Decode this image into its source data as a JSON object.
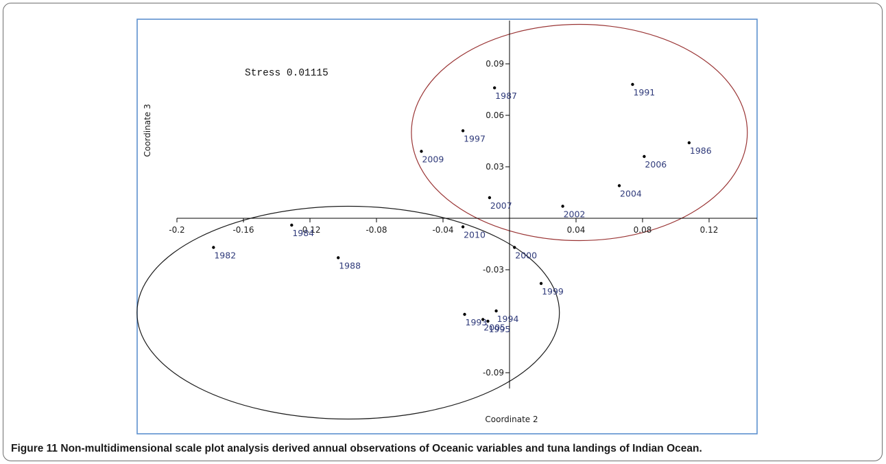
{
  "chart_data": {
    "type": "scatter",
    "title": "",
    "xlabel": "Coordinate 2",
    "ylabel": "Coordinate 3",
    "annotation": "Stress 0.01115",
    "xlim": [
      -0.2,
      0.15
    ],
    "ylim": [
      -0.1,
      0.11
    ],
    "x_ticks": [
      -0.2,
      -0.16,
      -0.12,
      -0.08,
      -0.04,
      0.04,
      0.08,
      0.12
    ],
    "x_tick_labels": [
      "-0.2",
      "-0.16",
      "-0.12",
      "-0.08",
      "-0.04",
      "0.04",
      "0.08",
      "0.12"
    ],
    "y_ticks": [
      0.09,
      0.06,
      0.03,
      -0.03,
      -0.09
    ],
    "y_tick_labels": [
      "0.09",
      "0.06",
      "0.03",
      "-0.03",
      "-0.09"
    ],
    "grid": false,
    "points": [
      {
        "label": "1987",
        "x": -0.009,
        "y": 0.076
      },
      {
        "label": "1991",
        "x": 0.074,
        "y": 0.078
      },
      {
        "label": "1997",
        "x": -0.028,
        "y": 0.051
      },
      {
        "label": "2009",
        "x": -0.053,
        "y": 0.039
      },
      {
        "label": "1986",
        "x": 0.108,
        "y": 0.044
      },
      {
        "label": "2006",
        "x": 0.081,
        "y": 0.036
      },
      {
        "label": "2004",
        "x": 0.066,
        "y": 0.019
      },
      {
        "label": "2007",
        "x": -0.012,
        "y": 0.012
      },
      {
        "label": "2002",
        "x": 0.032,
        "y": 0.007
      },
      {
        "label": "1984",
        "x": -0.131,
        "y": -0.004
      },
      {
        "label": "2010",
        "x": -0.028,
        "y": -0.005
      },
      {
        "label": "1982",
        "x": -0.178,
        "y": -0.017
      },
      {
        "label": "1988",
        "x": -0.103,
        "y": -0.023
      },
      {
        "label": "2000",
        "x": 0.003,
        "y": -0.017
      },
      {
        "label": "1999",
        "x": 0.019,
        "y": -0.038
      },
      {
        "label": "1994",
        "x": -0.008,
        "y": -0.054
      },
      {
        "label": "1993",
        "x": -0.027,
        "y": -0.056
      },
      {
        "label": "2005",
        "x": -0.016,
        "y": -0.059
      },
      {
        "label": "1995",
        "x": -0.013,
        "y": -0.06
      }
    ],
    "ellipses": [
      {
        "cx": 0.042,
        "cy": 0.05,
        "rx": 0.101,
        "ry": 0.063,
        "color": "#993333"
      },
      {
        "cx": -0.097,
        "cy": -0.055,
        "rx": 0.127,
        "ry": 0.062,
        "color": "#1a1a1a"
      }
    ],
    "colors": {
      "frame": "#5b8fce",
      "point": "#000000",
      "label": "#2f3a7a",
      "axis": "#000000"
    }
  },
  "caption": {
    "label": "Figure 11",
    "text": "Non-multidimensional scale plot analysis derived annual observations of Oceanic variables and tuna landings of Indian Ocean."
  }
}
